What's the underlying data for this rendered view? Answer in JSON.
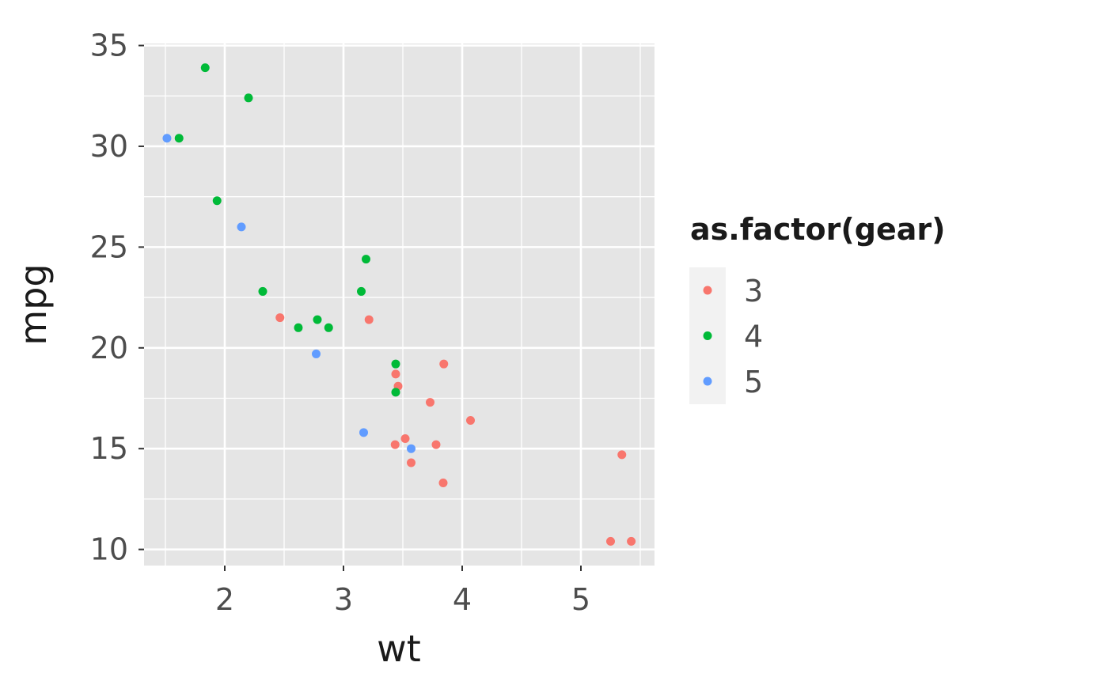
{
  "chart_data": {
    "type": "scatter",
    "xlabel": "wt",
    "ylabel": "mpg",
    "xlim": [
      1.32,
      5.62
    ],
    "ylim": [
      9.2,
      35.1
    ],
    "x_ticks": [
      2,
      3,
      4,
      5
    ],
    "y_ticks": [
      10,
      15,
      20,
      25,
      30,
      35
    ],
    "grid": true,
    "legend": {
      "title": "as.factor(gear)",
      "position": "right",
      "entries": [
        {
          "label": "3",
          "color": "#F8766D"
        },
        {
          "label": "4",
          "color": "#00BA38"
        },
        {
          "label": "5",
          "color": "#619CFF"
        }
      ]
    },
    "series": [
      {
        "name": "3",
        "color": "#F8766D",
        "points": [
          {
            "x": 3.215,
            "y": 21.4
          },
          {
            "x": 3.44,
            "y": 18.7
          },
          {
            "x": 3.46,
            "y": 18.1
          },
          {
            "x": 3.57,
            "y": 14.3
          },
          {
            "x": 4.07,
            "y": 16.4
          },
          {
            "x": 3.73,
            "y": 17.3
          },
          {
            "x": 3.78,
            "y": 15.2
          },
          {
            "x": 5.25,
            "y": 10.4
          },
          {
            "x": 5.424,
            "y": 10.4
          },
          {
            "x": 5.345,
            "y": 14.7
          },
          {
            "x": 2.465,
            "y": 21.5
          },
          {
            "x": 3.52,
            "y": 15.5
          },
          {
            "x": 3.435,
            "y": 15.2
          },
          {
            "x": 3.84,
            "y": 13.3
          },
          {
            "x": 3.845,
            "y": 19.2
          }
        ]
      },
      {
        "name": "4",
        "color": "#00BA38",
        "points": [
          {
            "x": 2.62,
            "y": 21.0
          },
          {
            "x": 2.875,
            "y": 21.0
          },
          {
            "x": 2.32,
            "y": 22.8
          },
          {
            "x": 3.19,
            "y": 24.4
          },
          {
            "x": 3.15,
            "y": 22.8
          },
          {
            "x": 3.44,
            "y": 19.2
          },
          {
            "x": 3.44,
            "y": 17.8
          },
          {
            "x": 2.2,
            "y": 32.4
          },
          {
            "x": 1.615,
            "y": 30.4
          },
          {
            "x": 1.835,
            "y": 33.9
          },
          {
            "x": 1.935,
            "y": 27.3
          },
          {
            "x": 2.78,
            "y": 21.4
          }
        ]
      },
      {
        "name": "5",
        "color": "#619CFF",
        "points": [
          {
            "x": 2.14,
            "y": 26.0
          },
          {
            "x": 1.513,
            "y": 30.4
          },
          {
            "x": 3.17,
            "y": 15.8
          },
          {
            "x": 2.77,
            "y": 19.7
          },
          {
            "x": 3.57,
            "y": 15.0
          }
        ]
      }
    ]
  }
}
